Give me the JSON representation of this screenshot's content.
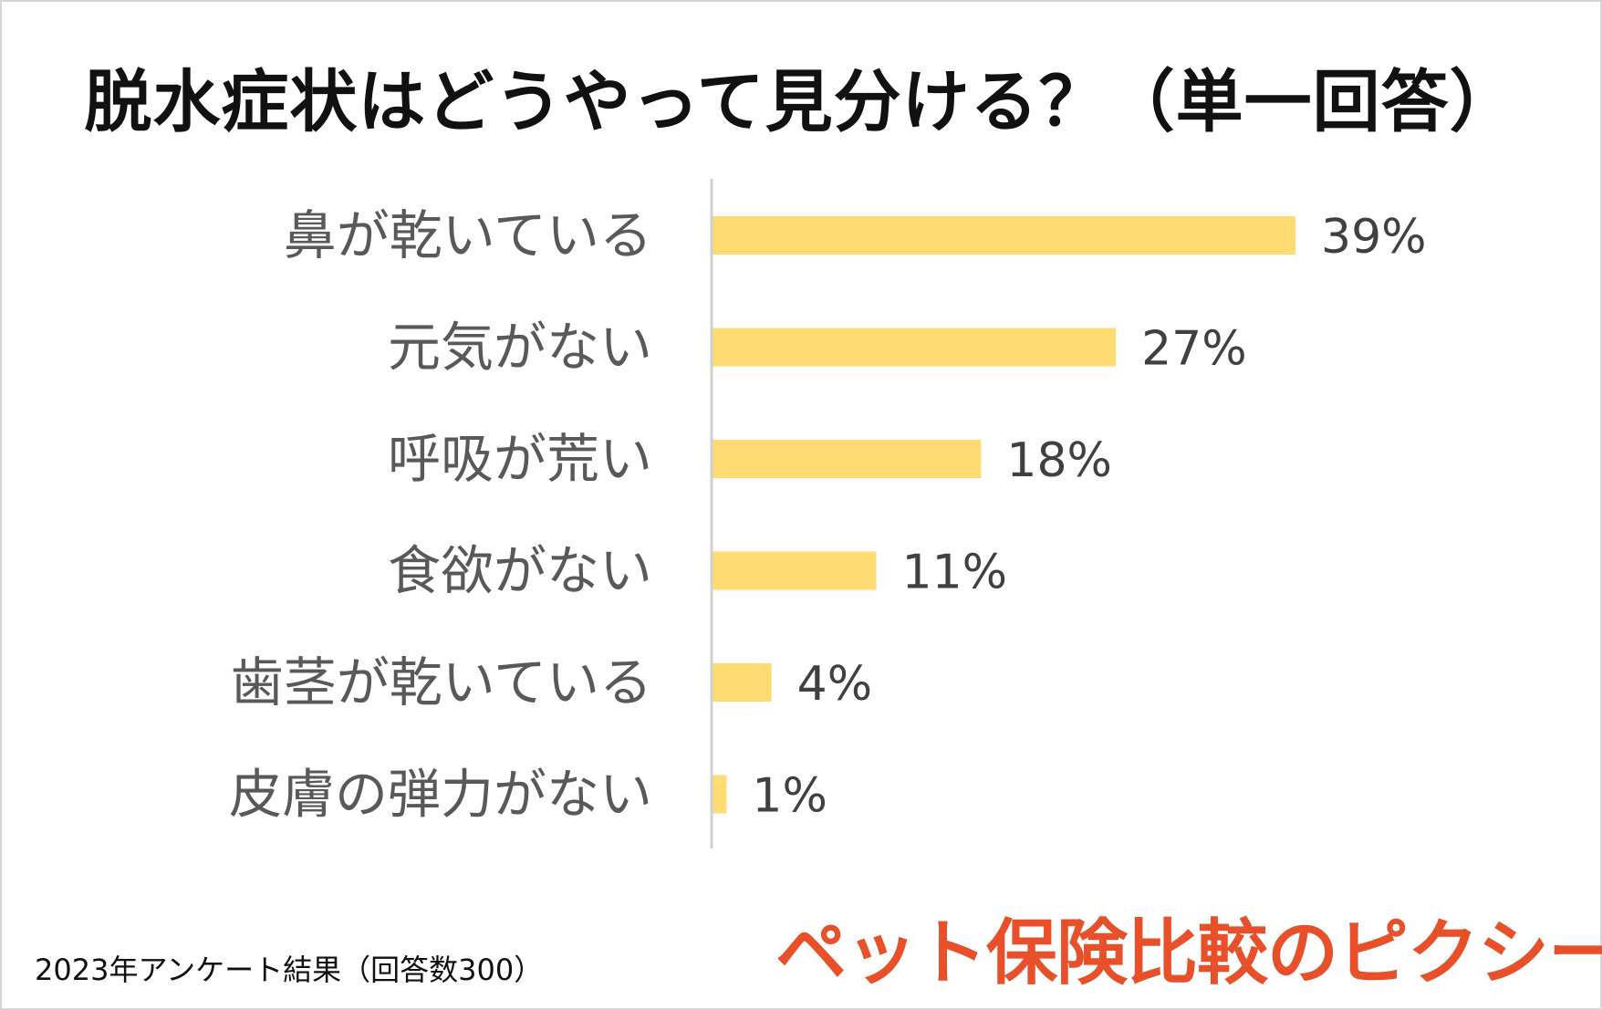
{
  "chart_data": {
    "type": "bar",
    "orientation": "horizontal",
    "title": "脱水症状はどうやって見分ける？（単一回答）",
    "categories": [
      "鼻が乾いている",
      "元気がない",
      "呼吸が荒い",
      "食欲がない",
      "歯茎が乾いている",
      "皮膚の弾力がない"
    ],
    "values": [
      39,
      27,
      18,
      11,
      4,
      1
    ],
    "value_labels": [
      "39%",
      "27%",
      "18%",
      "11%",
      "4%",
      "1%"
    ],
    "xlim": [
      0,
      39
    ],
    "grid": false,
    "legend": "none",
    "bar_color": "#ffdc73"
  },
  "footnote": "2023年アンケート結果（回答数300）",
  "logo_text": "ペット保険比較のピクシー",
  "colors": {
    "bar": "#ffdc73",
    "logo": "#e8502a",
    "axis": "#d0d0d0"
  }
}
